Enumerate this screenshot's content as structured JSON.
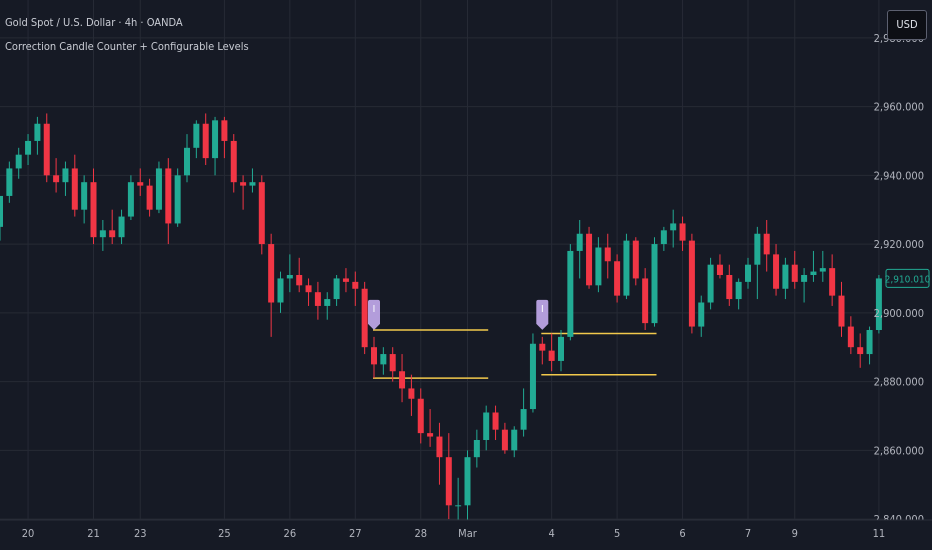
{
  "header": {
    "title": "Gold Spot / U.S. Dollar · 4h · OANDA",
    "indicator": "Correction Candle Counter + Configurable Levels"
  },
  "currency_button": "USD",
  "colors": {
    "background": "#161a25",
    "up": "#22ab94",
    "down": "#f23645",
    "level_line": "#f2c94c",
    "marker": "#b39ddb",
    "grid": "#262a35",
    "axis_text": "#b2b5be",
    "last_price_box": "#22ab94"
  },
  "chart_data": {
    "type": "candlestick",
    "title": "",
    "xlabel": "",
    "ylabel": "",
    "ylim": [
      2831,
      2991
    ],
    "y_ticks": [
      "2,840.000",
      "2,860.000",
      "2,880.000",
      "2,900.000",
      "2,920.000",
      "2,940.000",
      "2,960.000",
      "2,980.000"
    ],
    "x_ticks": [
      "20",
      "21",
      "23",
      "25",
      "26",
      "27",
      "28",
      "Mar",
      "4",
      "5",
      "6",
      "7",
      "9",
      "11"
    ],
    "grid": true,
    "last_price": "2,910.010",
    "candles": [
      [
        2925,
        2934,
        2921,
        2934
      ],
      [
        2934,
        2944,
        2932,
        2942
      ],
      [
        2942,
        2948,
        2939,
        2946
      ],
      [
        2946,
        2952,
        2943,
        2950
      ],
      [
        2950,
        2957,
        2946,
        2955
      ],
      [
        2955,
        2958,
        2938,
        2940
      ],
      [
        2940,
        2945,
        2935,
        2938
      ],
      [
        2938,
        2944,
        2934,
        2942
      ],
      [
        2942,
        2946,
        2928,
        2930
      ],
      [
        2930,
        2940,
        2926,
        2938
      ],
      [
        2938,
        2942,
        2920,
        2922
      ],
      [
        2922,
        2927,
        2918,
        2924
      ],
      [
        2924,
        2930,
        2920,
        2922
      ],
      [
        2922,
        2930,
        2920,
        2928
      ],
      [
        2928,
        2940,
        2927,
        2938
      ],
      [
        2938,
        2942,
        2934,
        2937
      ],
      [
        2937,
        2939,
        2928,
        2930
      ],
      [
        2930,
        2944,
        2929,
        2942
      ],
      [
        2942,
        2945,
        2920,
        2926
      ],
      [
        2926,
        2942,
        2925,
        2940
      ],
      [
        2940,
        2952,
        2938,
        2948
      ],
      [
        2948,
        2956,
        2945,
        2955
      ],
      [
        2955,
        2958,
        2943,
        2945
      ],
      [
        2945,
        2957,
        2940,
        2956
      ],
      [
        2956,
        2957,
        2945,
        2950
      ],
      [
        2950,
        2952,
        2935,
        2938
      ],
      [
        2938,
        2940,
        2930,
        2937
      ],
      [
        2937,
        2942,
        2935,
        2938
      ],
      [
        2938,
        2940,
        2917,
        2920
      ],
      [
        2920,
        2923,
        2893,
        2903
      ],
      [
        2903,
        2912,
        2900,
        2910
      ],
      [
        2910,
        2917,
        2906,
        2911
      ],
      [
        2911,
        2916,
        2906,
        2908
      ],
      [
        2908,
        2910,
        2902,
        2906
      ],
      [
        2906,
        2909,
        2898,
        2902
      ],
      [
        2902,
        2906,
        2898,
        2904
      ],
      [
        2904,
        2911,
        2902,
        2910
      ],
      [
        2910,
        2913,
        2906,
        2909
      ],
      [
        2909,
        2912,
        2902,
        2907
      ],
      [
        2907,
        2909,
        2888,
        2890
      ],
      [
        2890,
        2893,
        2881,
        2885
      ],
      [
        2885,
        2890,
        2882,
        2888
      ],
      [
        2888,
        2890,
        2880,
        2883
      ],
      [
        2883,
        2888,
        2874,
        2878
      ],
      [
        2878,
        2882,
        2870,
        2875
      ],
      [
        2875,
        2878,
        2862,
        2865
      ],
      [
        2865,
        2872,
        2861,
        2864
      ],
      [
        2864,
        2868,
        2850,
        2858
      ],
      [
        2858,
        2865,
        2840,
        2844
      ],
      [
        2844,
        2852,
        2836,
        2844
      ],
      [
        2844,
        2860,
        2838,
        2858
      ],
      [
        2858,
        2866,
        2855,
        2863
      ],
      [
        2863,
        2873,
        2860,
        2871
      ],
      [
        2871,
        2873,
        2863,
        2866
      ],
      [
        2866,
        2868,
        2859,
        2860
      ],
      [
        2860,
        2867,
        2858,
        2866
      ],
      [
        2866,
        2878,
        2864,
        2872
      ],
      [
        2872,
        2894,
        2871,
        2891
      ],
      [
        2891,
        2893,
        2885,
        2889
      ],
      [
        2889,
        2894,
        2883,
        2886
      ],
      [
        2886,
        2895,
        2883,
        2893
      ],
      [
        2893,
        2920,
        2892,
        2918
      ],
      [
        2918,
        2927,
        2910,
        2923
      ],
      [
        2923,
        2925,
        2907,
        2908
      ],
      [
        2908,
        2922,
        2906,
        2919
      ],
      [
        2919,
        2923,
        2910,
        2915
      ],
      [
        2915,
        2917,
        2903,
        2905
      ],
      [
        2905,
        2923,
        2904,
        2921
      ],
      [
        2921,
        2922,
        2908,
        2910
      ],
      [
        2910,
        2913,
        2895,
        2897
      ],
      [
        2897,
        2922,
        2896,
        2920
      ],
      [
        2920,
        2925,
        2918,
        2924
      ],
      [
        2924,
        2930,
        2919,
        2926
      ],
      [
        2926,
        2928,
        2918,
        2921
      ],
      [
        2921,
        2923,
        2894,
        2896
      ],
      [
        2896,
        2905,
        2893,
        2903
      ],
      [
        2903,
        2916,
        2901,
        2914
      ],
      [
        2914,
        2917,
        2910,
        2911
      ],
      [
        2911,
        2914,
        2902,
        2904
      ],
      [
        2904,
        2910,
        2901,
        2909
      ],
      [
        2909,
        2916,
        2907,
        2914
      ],
      [
        2914,
        2925,
        2904,
        2923
      ],
      [
        2923,
        2927,
        2912,
        2917
      ],
      [
        2917,
        2920,
        2905,
        2907
      ],
      [
        2907,
        2916,
        2904,
        2914
      ],
      [
        2914,
        2918,
        2907,
        2909
      ],
      [
        2909,
        2913,
        2903,
        2911
      ],
      [
        2911,
        2918,
        2909,
        2912
      ],
      [
        2912,
        2918,
        2909,
        2913
      ],
      [
        2913,
        2917,
        2902,
        2905
      ],
      [
        2905,
        2909,
        2893,
        2896
      ],
      [
        2896,
        2899,
        2888,
        2890
      ],
      [
        2890,
        2894,
        2884,
        2888
      ],
      [
        2888,
        2896,
        2885,
        2895
      ],
      [
        2895,
        2911,
        2894,
        2910
      ]
    ],
    "markers": [
      {
        "candle": 40,
        "label": "I"
      },
      {
        "candle": 58,
        "label": "I"
      }
    ],
    "levels": [
      {
        "start_candle": 40,
        "end_candle": 52,
        "price": 2895
      },
      {
        "start_candle": 40,
        "end_candle": 52,
        "price": 2881
      },
      {
        "start_candle": 58,
        "end_candle": 70,
        "price": 2894
      },
      {
        "start_candle": 58,
        "end_candle": 70,
        "price": 2882
      }
    ]
  }
}
